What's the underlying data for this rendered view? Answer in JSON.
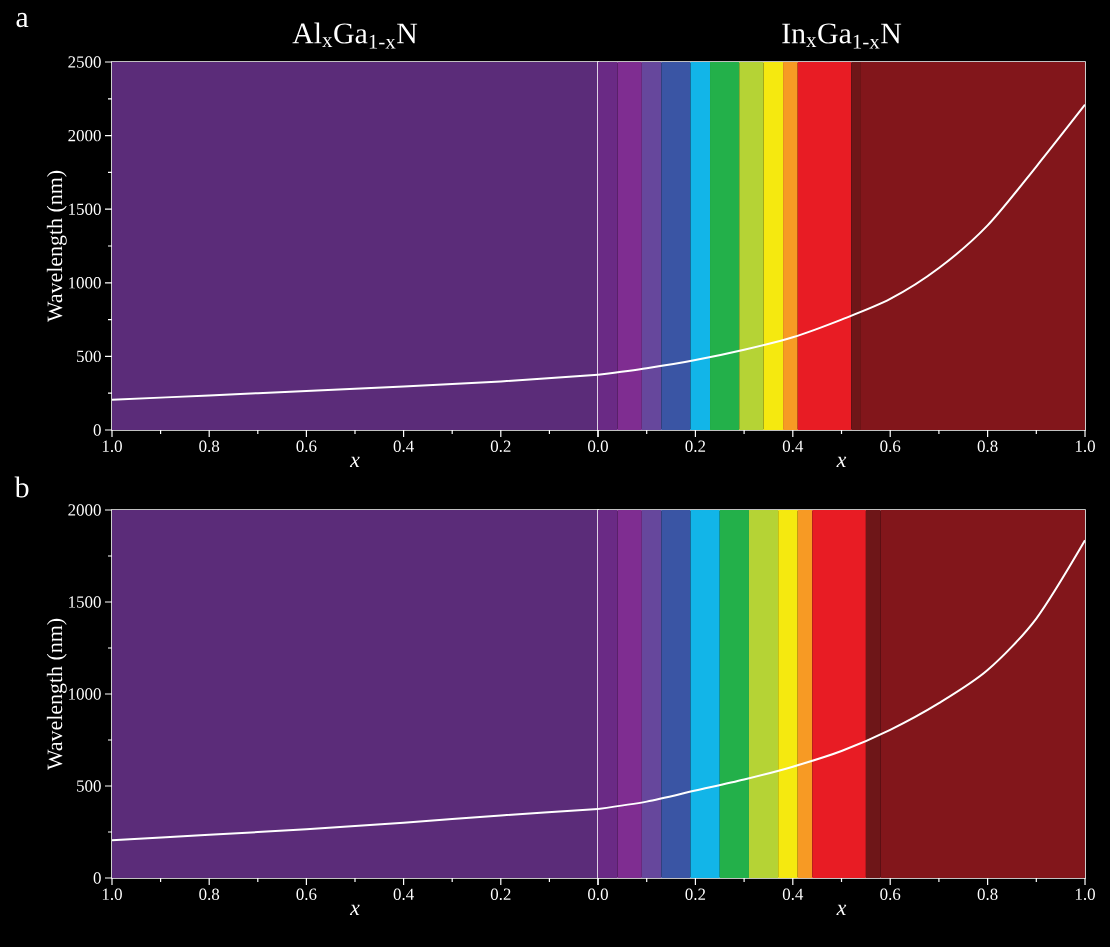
{
  "chart_data": [
    {
      "type": "line",
      "title": "Al$_{x}$Ga$_{1-x}$N",
      "xlabel": "x",
      "ylabel": "Wavelength (nm)",
      "annotations": [
        "a"
      ],
      "x": [
        1.0,
        0.8,
        0.6,
        0.4,
        0.2,
        0.0
      ],
      "series": [
        {
          "color": "#ffffff",
          "values": [
            205,
            235,
            265,
            295,
            330,
            375
          ]
        }
      ],
      "xlim": [
        1.0,
        0.0
      ],
      "ylim": [
        0,
        2500
      ],
      "xticks": [
        {
          "value": 1.0,
          "label": "1.0"
        },
        {
          "value": 0.8,
          "label": "0.8"
        },
        {
          "value": 0.6,
          "label": "0.6"
        },
        {
          "value": 0.4,
          "label": "0.4"
        },
        {
          "value": 0.2,
          "label": "0.2"
        },
        {
          "value": 0.0,
          "label": null
        }
      ],
      "yticks": [
        0,
        500,
        1000,
        1500,
        2000,
        2500
      ],
      "bands": [
        {
          "axis": "x",
          "from": 1.0,
          "to": 0.0,
          "color": "#5b2c79"
        }
      ],
      "marker": "none",
      "line_style": "solid"
    },
    {
      "type": "line",
      "title": "In$_{x}$Ga$_{1-x}$N",
      "xlabel": "x",
      "x": [
        0.0,
        0.1,
        0.2,
        0.3,
        0.4,
        0.5,
        0.6,
        0.7,
        0.8,
        0.9,
        1.0
      ],
      "series": [
        {
          "color": "#ffffff",
          "values": [
            375,
            420,
            475,
            545,
            630,
            750,
            890,
            1100,
            1390,
            1790,
            2210
          ]
        }
      ],
      "xlim": [
        0.0,
        1.0
      ],
      "ylim": [
        0,
        2500
      ],
      "tick_labels": "x",
      "xticks": [
        {
          "value": 0.0,
          "label": "0.0"
        },
        {
          "value": 0.2,
          "label": "0.2"
        },
        {
          "value": 0.4,
          "label": "0.4"
        },
        {
          "value": 0.6,
          "label": "0.6"
        },
        {
          "value": 0.8,
          "label": "0.8"
        },
        {
          "value": 1.0,
          "label": "1.0"
        }
      ],
      "bands": [
        {
          "axis": "x",
          "from": 0.0,
          "to": 0.04,
          "color": "#6a2a85"
        },
        {
          "axis": "x",
          "from": 0.04,
          "to": 0.09,
          "color": "#7f2d91"
        },
        {
          "axis": "x",
          "from": 0.09,
          "to": 0.13,
          "color": "#66479c"
        },
        {
          "axis": "x",
          "from": 0.13,
          "to": 0.19,
          "color": "#3a55a4"
        },
        {
          "axis": "x",
          "from": 0.19,
          "to": 0.23,
          "color": "#12b5e8"
        },
        {
          "axis": "x",
          "from": 0.23,
          "to": 0.29,
          "color": "#23b04a"
        },
        {
          "axis": "x",
          "from": 0.29,
          "to": 0.34,
          "color": "#b5d335"
        },
        {
          "axis": "x",
          "from": 0.34,
          "to": 0.38,
          "color": "#f5e90f"
        },
        {
          "axis": "x",
          "from": 0.38,
          "to": 0.41,
          "color": "#f79a24"
        },
        {
          "axis": "x",
          "from": 0.41,
          "to": 0.52,
          "color": "#e81c24"
        },
        {
          "axis": "x",
          "from": 0.52,
          "to": 0.54,
          "color": "#6e1618"
        },
        {
          "axis": "x",
          "from": 0.54,
          "to": 1.0,
          "color": "#82161b"
        }
      ],
      "marker": "none",
      "line_style": "solid"
    },
    {
      "type": "line",
      "xlabel": "x",
      "ylabel": "Wavelength (nm)",
      "annotations": [
        "b"
      ],
      "x": [
        1.0,
        0.8,
        0.6,
        0.4,
        0.2,
        0.0
      ],
      "series": [
        {
          "color": "#ffffff",
          "values": [
            205,
            235,
            265,
            300,
            340,
            375
          ]
        }
      ],
      "xlim": [
        1.0,
        0.0
      ],
      "ylim": [
        0,
        2000
      ],
      "xticks": [
        {
          "value": 1.0,
          "label": "1.0"
        },
        {
          "value": 0.8,
          "label": "0.8"
        },
        {
          "value": 0.6,
          "label": "0.6"
        },
        {
          "value": 0.4,
          "label": "0.4"
        },
        {
          "value": 0.2,
          "label": "0.2"
        },
        {
          "value": 0.0,
          "label": null
        }
      ],
      "yticks": [
        0,
        500,
        1000,
        1500,
        2000
      ],
      "bands": [
        {
          "axis": "x",
          "from": 1.0,
          "to": 0.0,
          "color": "#5b2c79"
        }
      ],
      "marker": "none",
      "line_style": "solid"
    },
    {
      "type": "line",
      "xlabel": "x",
      "x": [
        0.0,
        0.1,
        0.2,
        0.3,
        0.4,
        0.5,
        0.6,
        0.7,
        0.8,
        0.9,
        1.0
      ],
      "series": [
        {
          "color": "#ffffff",
          "values": [
            375,
            415,
            475,
            535,
            605,
            690,
            805,
            950,
            1130,
            1410,
            1835
          ]
        }
      ],
      "xlim": [
        0.0,
        1.0
      ],
      "ylim": [
        0,
        2000
      ],
      "tick_labels": "x",
      "xticks": [
        {
          "value": 0.0,
          "label": "0.0"
        },
        {
          "value": 0.2,
          "label": "0.2"
        },
        {
          "value": 0.4,
          "label": "0.4"
        },
        {
          "value": 0.6,
          "label": "0.6"
        },
        {
          "value": 0.8,
          "label": "0.8"
        },
        {
          "value": 1.0,
          "label": "1.0"
        }
      ],
      "bands": [
        {
          "axis": "x",
          "from": 0.0,
          "to": 0.04,
          "color": "#6a2a85"
        },
        {
          "axis": "x",
          "from": 0.04,
          "to": 0.09,
          "color": "#7f2d91"
        },
        {
          "axis": "x",
          "from": 0.09,
          "to": 0.13,
          "color": "#66479c"
        },
        {
          "axis": "x",
          "from": 0.13,
          "to": 0.19,
          "color": "#3a55a4"
        },
        {
          "axis": "x",
          "from": 0.19,
          "to": 0.25,
          "color": "#12b5e8"
        },
        {
          "axis": "x",
          "from": 0.25,
          "to": 0.31,
          "color": "#23b04a"
        },
        {
          "axis": "x",
          "from": 0.31,
          "to": 0.37,
          "color": "#b5d335"
        },
        {
          "axis": "x",
          "from": 0.37,
          "to": 0.41,
          "color": "#f5e90f"
        },
        {
          "axis": "x",
          "from": 0.41,
          "to": 0.44,
          "color": "#f79a24"
        },
        {
          "axis": "x",
          "from": 0.44,
          "to": 0.55,
          "color": "#e81c24"
        },
        {
          "axis": "x",
          "from": 0.55,
          "to": 0.58,
          "color": "#6e1618"
        },
        {
          "axis": "x",
          "from": 0.58,
          "to": 1.0,
          "color": "#82161b"
        }
      ],
      "marker": "none",
      "line_style": "solid"
    }
  ]
}
